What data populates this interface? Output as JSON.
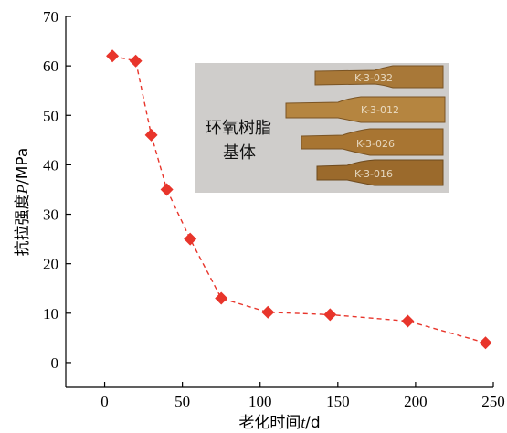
{
  "chart_data": {
    "type": "line",
    "title": "",
    "xlabel": {
      "prefix": "老化时间",
      "var": "t",
      "unit": "/d"
    },
    "ylabel": {
      "prefix": "抗拉强度",
      "var": "P",
      "unit": "/MPa"
    },
    "xlim": [
      -25,
      250
    ],
    "ylim": [
      -5,
      70
    ],
    "xticks": [
      0,
      50,
      100,
      150,
      200,
      250
    ],
    "yticks": [
      0,
      10,
      20,
      30,
      40,
      50,
      60,
      70
    ],
    "grid": false,
    "series": [
      {
        "color": "#e8352b",
        "marker": "diamond",
        "line_style": "dashed",
        "x": [
          5,
          20,
          30,
          40,
          55,
          75,
          105,
          145,
          195,
          245
        ],
        "y": [
          62,
          61,
          46,
          35,
          25,
          13,
          10.2,
          9.7,
          8.4,
          4
        ]
      }
    ],
    "inset_photo": {
      "caption_lines": [
        "环氧树脂",
        "基体"
      ],
      "specimen_labels": [
        "K-3-032",
        "K-3-012",
        "K-3-026",
        "K-3-016"
      ]
    }
  }
}
